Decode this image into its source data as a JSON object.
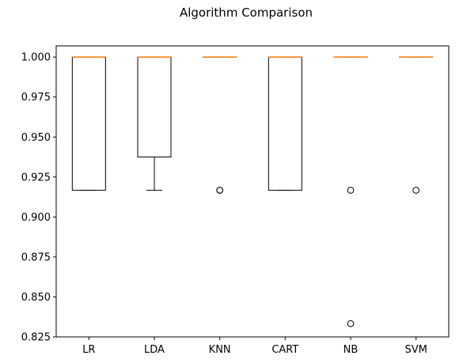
{
  "chart_data": {
    "type": "box",
    "title": "Algorithm Comparison",
    "xlabel": "",
    "ylabel": "",
    "ylim": [
      0.825,
      1.007
    ],
    "yticks": [
      0.825,
      0.85,
      0.875,
      0.9,
      0.925,
      0.95,
      0.975,
      1.0
    ],
    "ytick_labels": [
      "0.825",
      "0.850",
      "0.875",
      "0.900",
      "0.925",
      "0.950",
      "0.975",
      "1.000"
    ],
    "categories": [
      "LR",
      "LDA",
      "KNN",
      "CART",
      "NB",
      "SVM"
    ],
    "boxes": [
      {
        "q1": 0.9167,
        "median": 1.0,
        "q3": 1.0,
        "whisker_low": 0.9167,
        "whisker_high": 1.0,
        "outliers": []
      },
      {
        "q1": 0.9375,
        "median": 1.0,
        "q3": 1.0,
        "whisker_low": 0.9167,
        "whisker_high": 1.0,
        "outliers": []
      },
      {
        "q1": 1.0,
        "median": 1.0,
        "q3": 1.0,
        "whisker_low": 1.0,
        "whisker_high": 1.0,
        "outliers": [
          0.9167,
          0.9167
        ]
      },
      {
        "q1": 0.9167,
        "median": 1.0,
        "q3": 1.0,
        "whisker_low": 0.9167,
        "whisker_high": 1.0,
        "outliers": []
      },
      {
        "q1": 1.0,
        "median": 1.0,
        "q3": 1.0,
        "whisker_low": 1.0,
        "whisker_high": 1.0,
        "outliers": [
          0.9167,
          0.8333
        ]
      },
      {
        "q1": 1.0,
        "median": 1.0,
        "q3": 1.0,
        "whisker_low": 1.0,
        "whisker_high": 1.0,
        "outliers": [
          0.9167
        ]
      }
    ],
    "grid": false,
    "colors": {
      "box": "#000000",
      "median": "#ff7f0e",
      "outlier": "#000000",
      "background": "#ffffff"
    }
  }
}
